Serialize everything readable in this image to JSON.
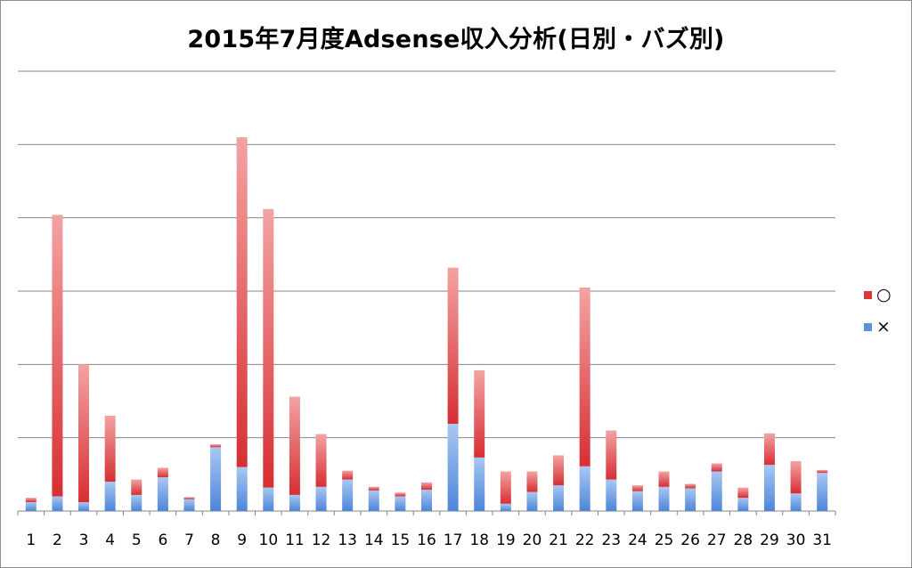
{
  "chart_data": {
    "type": "bar",
    "stacked": true,
    "title": "2015年7月度Adsense収入分析(日別・バズ別)",
    "xlabel": "",
    "ylabel": "",
    "ylim": [
      0,
      6
    ],
    "gridlines": [
      1,
      2,
      3,
      4,
      5,
      6
    ],
    "grid": true,
    "legend_position": "right",
    "categories": [
      "1",
      "2",
      "3",
      "4",
      "5",
      "6",
      "7",
      "8",
      "9",
      "10",
      "11",
      "12",
      "13",
      "14",
      "15",
      "16",
      "17",
      "18",
      "19",
      "20",
      "21",
      "22",
      "23",
      "24",
      "25",
      "26",
      "27",
      "28",
      "29",
      "30",
      "31"
    ],
    "series": [
      {
        "name": "×",
        "color": "#5b8fdb",
        "values": [
          0.12,
          0.2,
          0.12,
          0.4,
          0.22,
          0.46,
          0.16,
          0.87,
          0.6,
          0.32,
          0.22,
          0.33,
          0.43,
          0.28,
          0.2,
          0.29,
          1.19,
          0.73,
          0.1,
          0.26,
          0.35,
          0.61,
          0.43,
          0.27,
          0.33,
          0.31,
          0.54,
          0.18,
          0.63,
          0.24,
          0.52
        ]
      },
      {
        "name": "○",
        "color": "#d9363a",
        "values": [
          0.06,
          3.84,
          1.88,
          0.9,
          0.21,
          0.13,
          0.03,
          0.04,
          4.5,
          3.8,
          1.34,
          0.72,
          0.12,
          0.05,
          0.05,
          0.1,
          2.13,
          1.19,
          0.44,
          0.28,
          0.41,
          2.44,
          0.67,
          0.08,
          0.21,
          0.06,
          0.11,
          0.14,
          0.43,
          0.44,
          0.04
        ]
      }
    ]
  }
}
